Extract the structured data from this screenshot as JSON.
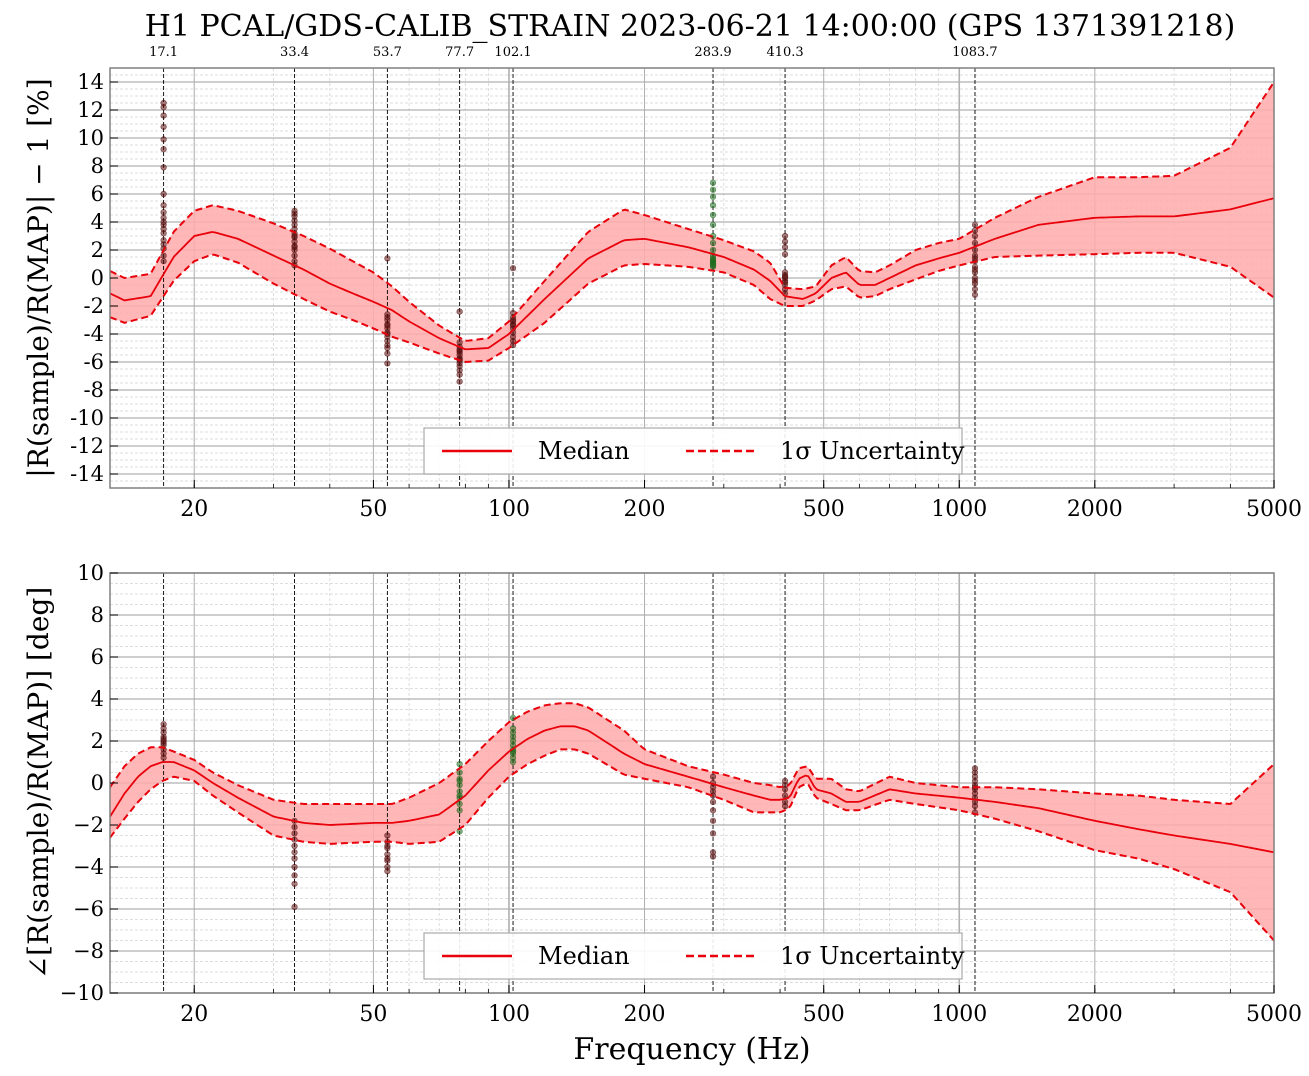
{
  "title": "H1 PCAL/GDS-CALIB_STRAIN 2023-06-21 14:00:00 (GPS 1371391218)",
  "colors": {
    "median": "#e8000b",
    "band": "#ffaaaa",
    "points_dark": "#5a0f0f",
    "points_green": "#1d6b1d",
    "grid_major": "#b0b0b0",
    "grid_minor": "#d4d4d4",
    "frame": "#808080"
  },
  "lines": {
    "frequencies": [
      17.1,
      33.4,
      53.7,
      77.7,
      102.1,
      283.9,
      410.3,
      1083.7
    ],
    "labels": [
      "17.1",
      "33.4",
      "53.7",
      "77.7",
      "102.1",
      "283.9",
      "410.3",
      "1083.7"
    ]
  },
  "chart_data": [
    {
      "type": "line",
      "xscale": "log",
      "xlim": [
        13,
        5000
      ],
      "ylim": [
        -15,
        15
      ],
      "xticks": [
        20,
        50,
        100,
        200,
        500,
        1000,
        2000,
        5000
      ],
      "xtick_labels": [
        "20",
        "50",
        "100",
        "200",
        "500",
        "1000",
        "2000",
        "5000"
      ],
      "yticks": [
        14,
        12,
        10,
        8,
        6,
        4,
        2,
        0,
        -2,
        -4,
        -6,
        -8,
        -10,
        -12,
        -14
      ],
      "ytick_labels": [
        "14",
        "12",
        "10",
        "8",
        "6",
        "4",
        "2",
        "0",
        "-2",
        "-4",
        "-6",
        "-8",
        "-10",
        "-12",
        "-14"
      ],
      "xlabel": "",
      "ylabel": "|R(sample)/R(MAP)| − 1 [%]",
      "legend": {
        "placement": "bottom-center",
        "median_label": "Median",
        "uncertainty_label": "1σ Uncertainty"
      },
      "x": [
        13,
        14,
        16,
        18,
        20,
        22,
        25,
        30,
        35,
        40,
        45,
        50,
        55,
        60,
        70,
        80,
        90,
        100,
        120,
        150,
        180,
        200,
        250,
        300,
        350,
        380,
        410,
        450,
        480,
        520,
        560,
        600,
        650,
        700,
        800,
        900,
        1000,
        1200,
        1500,
        2000,
        2500,
        3000,
        4000,
        5000
      ],
      "median": [
        -1.1,
        -1.6,
        -1.3,
        1.5,
        3.0,
        3.3,
        2.8,
        1.6,
        0.6,
        -0.4,
        -1.1,
        -1.7,
        -2.3,
        -3.1,
        -4.3,
        -5.1,
        -5.0,
        -4.0,
        -1.5,
        1.4,
        2.7,
        2.8,
        2.2,
        1.5,
        0.6,
        -0.2,
        -1.3,
        -1.5,
        -1.1,
        0.0,
        0.4,
        -0.5,
        -0.5,
        0.0,
        0.9,
        1.4,
        1.8,
        2.8,
        3.8,
        4.3,
        4.4,
        4.4,
        4.9,
        5.7
      ],
      "upper": [
        0.5,
        0.0,
        0.3,
        3.3,
        4.8,
        5.2,
        4.8,
        3.9,
        3.0,
        2.1,
        1.2,
        0.4,
        -0.6,
        -1.7,
        -3.4,
        -4.5,
        -4.3,
        -3.1,
        -0.2,
        3.3,
        4.9,
        4.5,
        3.5,
        2.7,
        1.9,
        1.1,
        -0.7,
        -0.8,
        -0.6,
        0.9,
        1.5,
        0.5,
        0.4,
        0.9,
        2.0,
        2.5,
        2.8,
        4.3,
        5.8,
        7.2,
        7.2,
        7.3,
        9.3,
        14.0
      ],
      "lower": [
        -2.8,
        -3.2,
        -2.7,
        -0.2,
        1.2,
        1.7,
        1.1,
        -0.4,
        -1.5,
        -2.4,
        -3.0,
        -3.6,
        -4.2,
        -4.6,
        -5.4,
        -6.0,
        -5.9,
        -5.0,
        -3.2,
        -0.4,
        0.9,
        1.0,
        0.8,
        0.4,
        -0.5,
        -1.5,
        -2.0,
        -2.0,
        -1.6,
        -0.8,
        -0.6,
        -1.4,
        -1.3,
        -0.8,
        -0.1,
        0.5,
        0.9,
        1.5,
        1.6,
        1.7,
        1.8,
        1.8,
        0.8,
        -1.4
      ],
      "points": [
        {
          "f": 17.1,
          "color": "dark",
          "y": [
            12.5,
            12.2,
            11.6,
            10.8,
            9.9,
            9.2,
            7.9,
            6.0,
            5.2,
            4.7,
            4.3,
            3.8,
            3.2,
            2.7,
            2.1,
            1.6,
            1.2,
            3.5,
            4.0,
            2.4
          ]
        },
        {
          "f": 33.4,
          "color": "dark",
          "y": [
            4.8,
            4.4,
            4.1,
            3.8,
            3.5,
            3.2,
            2.9,
            2.6,
            2.3,
            2.0,
            1.6,
            1.2,
            0.9,
            4.6,
            3.0,
            2.2
          ]
        },
        {
          "f": 53.7,
          "color": "dark",
          "y": [
            1.4,
            -2.6,
            -3.0,
            -3.3,
            -3.6,
            -3.9,
            -4.2,
            -4.5,
            -4.8,
            -5.0,
            -5.4,
            -6.1,
            -4.0,
            -3.4,
            -2.8
          ]
        },
        {
          "f": 77.7,
          "color": "dark",
          "y": [
            -2.4,
            -4.6,
            -4.9,
            -5.1,
            -5.3,
            -5.5,
            -5.7,
            -5.9,
            -6.1,
            -6.3,
            -6.6,
            -6.9,
            -7.4,
            -5.8,
            -5.2
          ]
        },
        {
          "f": 102.1,
          "color": "dark",
          "y": [
            0.7,
            -2.5,
            -2.8,
            -3.1,
            -3.3,
            -3.6,
            -3.9,
            -4.2,
            -4.5,
            -4.8,
            -3.4,
            -3.0
          ]
        },
        {
          "f": 283.9,
          "color": "green",
          "y": [
            6.8,
            6.3,
            5.8,
            5.2,
            4.5,
            3.8,
            3.0,
            2.5,
            2.0,
            1.6,
            1.4,
            1.2,
            1.0,
            0.8,
            1.1,
            1.3,
            0.9
          ]
        },
        {
          "f": 410.3,
          "color": "dark",
          "y": [
            3.0,
            2.6,
            2.2,
            1.7,
            0.4,
            0.2,
            0.0,
            -0.2,
            -0.3,
            -0.5,
            -0.8,
            -1.1,
            0.1
          ]
        },
        {
          "f": 1083.7,
          "color": "dark",
          "y": [
            3.8,
            3.4,
            3.0,
            2.5,
            2.0,
            1.6,
            1.2,
            0.8,
            0.4,
            0.0,
            -0.4,
            -0.8,
            -1.2,
            -0.2,
            0.6,
            1.4
          ]
        }
      ]
    },
    {
      "type": "line",
      "xscale": "log",
      "xlim": [
        13,
        5000
      ],
      "ylim": [
        -10,
        10
      ],
      "xticks": [
        20,
        50,
        100,
        200,
        500,
        1000,
        2000,
        5000
      ],
      "xtick_labels": [
        "20",
        "50",
        "100",
        "200",
        "500",
        "1000",
        "2000",
        "5000"
      ],
      "yticks": [
        10,
        8,
        6,
        4,
        2,
        0,
        -2,
        -4,
        -6,
        -8,
        -10
      ],
      "ytick_labels": [
        "10",
        "8",
        "6",
        "4",
        "2",
        "0",
        "−2",
        "−4",
        "−6",
        "−8",
        "−10"
      ],
      "xlabel": "Frequency (Hz)",
      "ylabel": "∠[R(sample)/R(MAP)] [deg]",
      "legend": {
        "placement": "bottom-center",
        "median_label": "Median",
        "uncertainty_label": "1σ Uncertainty"
      },
      "x": [
        13,
        14,
        15,
        16,
        17,
        18,
        20,
        22,
        25,
        30,
        35,
        40,
        50,
        55,
        60,
        70,
        80,
        90,
        100,
        110,
        120,
        130,
        140,
        150,
        180,
        200,
        250,
        300,
        350,
        380,
        400,
        420,
        440,
        460,
        480,
        520,
        560,
        600,
        700,
        800,
        1000,
        1200,
        1500,
        2000,
        2500,
        3000,
        4000,
        5000
      ],
      "median": [
        -1.6,
        -0.5,
        0.3,
        0.8,
        1.0,
        1.0,
        0.6,
        0.0,
        -0.7,
        -1.6,
        -1.9,
        -2.0,
        -1.9,
        -1.9,
        -1.8,
        -1.5,
        -0.6,
        0.6,
        1.5,
        2.1,
        2.5,
        2.7,
        2.7,
        2.5,
        1.4,
        0.9,
        0.3,
        -0.2,
        -0.6,
        -0.8,
        -0.8,
        -0.7,
        0.2,
        0.4,
        -0.3,
        -0.5,
        -0.9,
        -0.9,
        -0.3,
        -0.5,
        -0.7,
        -0.9,
        -1.2,
        -1.8,
        -2.2,
        -2.5,
        -2.9,
        -3.3
      ],
      "upper": [
        -0.2,
        0.8,
        1.4,
        1.7,
        1.7,
        1.5,
        1.1,
        0.5,
        -0.1,
        -0.8,
        -1.0,
        -1.0,
        -1.0,
        -1.0,
        -0.7,
        0.0,
        0.9,
        2.0,
        2.9,
        3.4,
        3.7,
        3.8,
        3.8,
        3.6,
        2.5,
        1.6,
        0.8,
        0.4,
        0.0,
        -0.1,
        -0.2,
        -0.1,
        0.7,
        0.8,
        0.2,
        0.2,
        -0.3,
        -0.4,
        0.3,
        0.0,
        -0.2,
        -0.2,
        -0.3,
        -0.5,
        -0.6,
        -0.8,
        -1.0,
        0.9
      ],
      "lower": [
        -2.6,
        -1.7,
        -0.9,
        -0.3,
        0.1,
        0.3,
        0.1,
        -0.6,
        -1.4,
        -2.5,
        -2.8,
        -2.9,
        -2.8,
        -2.8,
        -2.9,
        -2.8,
        -2.0,
        -0.7,
        0.3,
        0.9,
        1.3,
        1.6,
        1.6,
        1.4,
        0.4,
        0.2,
        -0.2,
        -0.8,
        -1.4,
        -1.4,
        -1.4,
        -1.2,
        -0.2,
        0.0,
        -0.7,
        -1.0,
        -1.3,
        -1.3,
        -0.8,
        -1.0,
        -1.3,
        -1.7,
        -2.3,
        -3.2,
        -3.6,
        -4.1,
        -5.2,
        -7.5
      ],
      "points": [
        {
          "f": 17.1,
          "color": "dark",
          "y": [
            2.8,
            2.6,
            2.4,
            2.2,
            2.0,
            1.8,
            1.6,
            1.4,
            1.2,
            2.1,
            1.9
          ]
        },
        {
          "f": 33.4,
          "color": "dark",
          "y": [
            -1.8,
            -2.1,
            -2.4,
            -2.7,
            -3.0,
            -3.3,
            -3.6,
            -4.0,
            -4.4,
            -4.8,
            -5.9
          ]
        },
        {
          "f": 53.7,
          "color": "dark",
          "y": [
            -2.5,
            -2.8,
            -3.1,
            -3.4,
            -3.7,
            -4.0,
            -4.2,
            -3.6,
            -3.0
          ]
        },
        {
          "f": 77.7,
          "color": "green",
          "y": [
            0.9,
            0.5,
            0.2,
            -0.1,
            -0.4,
            -0.7,
            -1.0,
            -1.3,
            -2.3,
            -0.6,
            0.1
          ]
        },
        {
          "f": 102.1,
          "color": "green",
          "y": [
            2.6,
            2.4,
            2.2,
            2.0,
            1.8,
            1.6,
            1.4,
            1.2,
            1.0,
            3.1,
            1.5
          ]
        },
        {
          "f": 283.9,
          "color": "dark",
          "y": [
            0.3,
            0.0,
            -0.2,
            -0.4,
            -0.6,
            -0.9,
            -1.3,
            -1.8,
            -2.4,
            -3.3,
            -3.5
          ]
        },
        {
          "f": 410.3,
          "color": "dark",
          "y": [
            0.1,
            -0.1,
            -0.3,
            -0.6,
            -0.9,
            -1.1
          ]
        },
        {
          "f": 1083.7,
          "color": "dark",
          "y": [
            0.7,
            0.5,
            0.3,
            0.1,
            -0.1,
            -0.3,
            -0.5,
            -0.7,
            -0.9,
            -1.1,
            -1.4,
            -0.2
          ]
        }
      ]
    }
  ]
}
